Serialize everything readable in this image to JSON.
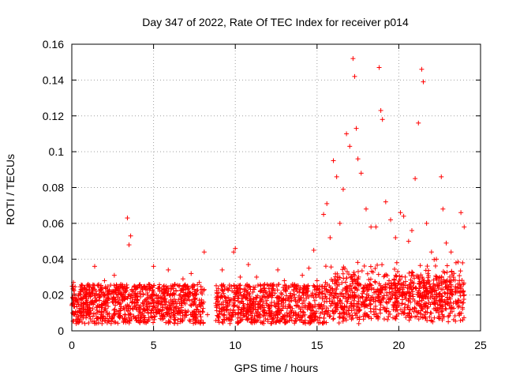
{
  "chart_data": {
    "type": "scatter",
    "title": "Day 347 of 2022, Rate Of TEC Index for receiver p014",
    "xlabel": "GPS time / hours",
    "ylabel": "ROTI / TECUs",
    "xlim": [
      0,
      25
    ],
    "ylim": [
      0,
      0.16
    ],
    "xticks": [
      0,
      5,
      10,
      15,
      20,
      25
    ],
    "xtick_labels": [
      "0",
      "5",
      "10",
      "15",
      "20",
      "25"
    ],
    "yticks": [
      0,
      0.02,
      0.04,
      0.06,
      0.08,
      0.1,
      0.12,
      0.14,
      0.16
    ],
    "ytick_labels": [
      "0",
      "0.02",
      "0.04",
      "0.06",
      "0.08",
      "0.1",
      "0.12",
      "0.14",
      "0.16"
    ],
    "grid": true,
    "marker": "+",
    "marker_color": "#ff0000",
    "series": [
      {
        "name": "ROTI",
        "x": [
          0.1,
          0.5,
          1.0,
          1.4,
          2.0,
          2.6,
          3.0,
          3.4,
          3.5,
          3.6,
          4.0,
          4.6,
          5.0,
          5.5,
          5.9,
          6.3,
          6.8,
          7.3,
          7.8,
          8.1,
          8.3,
          9.2,
          9.9,
          10.0,
          10.3,
          10.8,
          11.3,
          11.8,
          12.3,
          12.6,
          13.0,
          13.5,
          14.1,
          14.5,
          14.8,
          15.0,
          15.4,
          15.6,
          15.8,
          16.0,
          16.2,
          16.4,
          16.6,
          16.8,
          17.0,
          17.2,
          17.3,
          17.4,
          17.5,
          17.7,
          18.0,
          18.3,
          18.6,
          18.8,
          18.9,
          19.0,
          19.2,
          19.5,
          19.8,
          20.1,
          20.3,
          20.6,
          20.8,
          21.0,
          21.2,
          21.4,
          21.5,
          21.7,
          22.0,
          22.3,
          22.6,
          22.7,
          22.9,
          23.2,
          23.5,
          23.8,
          24.0
        ],
        "y": [
          0.027,
          0.022,
          0.026,
          0.036,
          0.028,
          0.031,
          0.026,
          0.063,
          0.048,
          0.053,
          0.024,
          0.025,
          0.036,
          0.022,
          0.034,
          0.026,
          0.029,
          0.032,
          0.027,
          0.044,
          0.009,
          0.034,
          0.044,
          0.046,
          0.03,
          0.037,
          0.03,
          0.026,
          0.025,
          0.034,
          0.028,
          0.026,
          0.031,
          0.035,
          0.045,
          0.028,
          0.065,
          0.071,
          0.052,
          0.095,
          0.086,
          0.06,
          0.079,
          0.11,
          0.103,
          0.152,
          0.142,
          0.113,
          0.096,
          0.088,
          0.068,
          0.058,
          0.058,
          0.147,
          0.123,
          0.118,
          0.072,
          0.062,
          0.052,
          0.066,
          0.064,
          0.05,
          0.056,
          0.085,
          0.116,
          0.146,
          0.139,
          0.06,
          0.044,
          0.04,
          0.086,
          0.068,
          0.049,
          0.044,
          0.038,
          0.066,
          0.058
        ]
      }
    ]
  }
}
